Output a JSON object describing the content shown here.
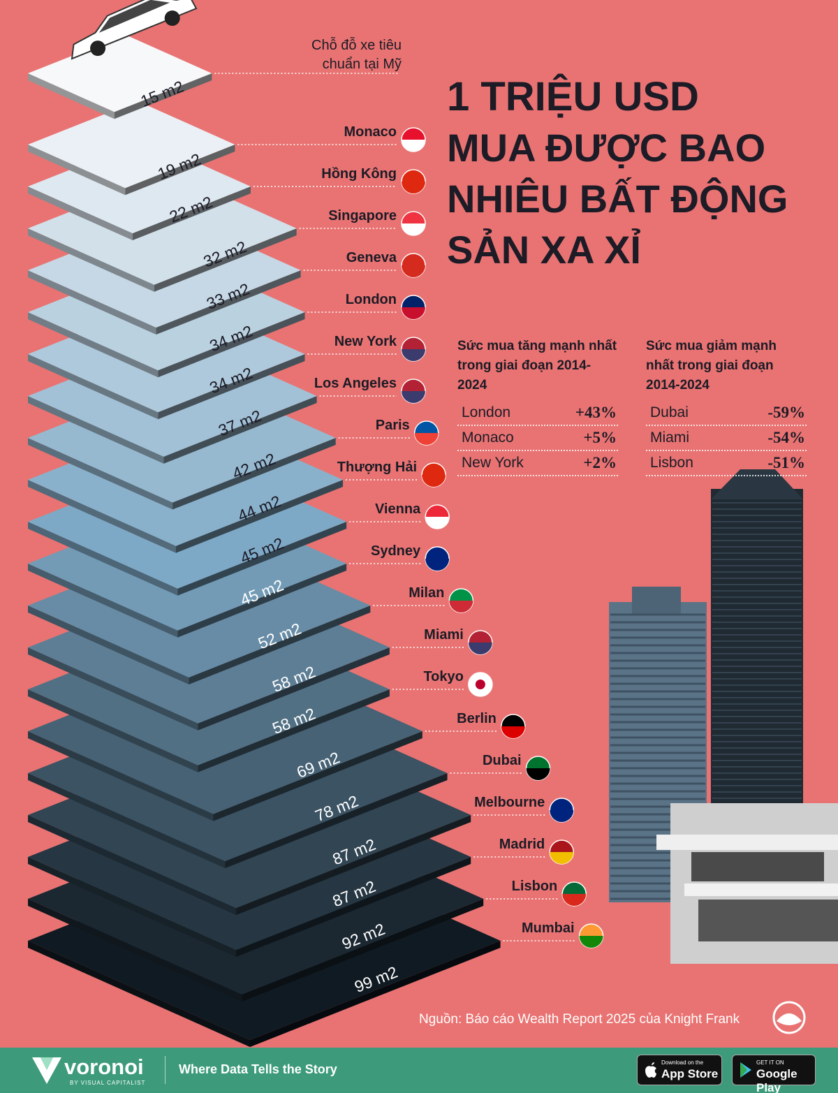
{
  "chart_data": {
    "type": "iso-stack",
    "title": "1 TRIỆU USD",
    "subtitle": "MUA ĐƯỢC BAO NHIÊU BẤT ĐỘNG SẢN XA XỈ",
    "categories": [
      "Chỗ đỗ xe tiêu chuẩn tại Mỹ",
      "Monaco",
      "Hồng Kông",
      "Singapore",
      "Geneva",
      "London",
      "New York",
      "Los Angeles",
      "Paris",
      "Thượng Hải",
      "Vienna",
      "Sydney",
      "Milan",
      "Miami",
      "Tokyo",
      "Berlin",
      "Dubai",
      "Melbourne",
      "Madrid",
      "Lisbon",
      "Mumbai"
    ],
    "values": [
      15,
      19,
      22,
      32,
      33,
      34,
      34,
      37,
      42,
      44,
      45,
      45,
      52,
      58,
      58,
      69,
      78,
      87,
      87,
      92,
      99
    ],
    "value_labels": [
      "15 m2",
      "19 m2",
      "22 m2",
      "32 m2",
      "33 m2",
      "34 m2",
      "34 m2",
      "37 m2",
      "42 m2",
      "44 m2",
      "45 m2",
      "45 m2",
      "52 m2",
      "58 m2",
      "58 m2",
      "69 m2",
      "78 m2",
      "87 m2",
      "87 m2",
      "92 m2",
      "99 m2"
    ],
    "colors": [
      "#f6f8fa",
      "#7ea9c6",
      "#101a22"
    ],
    "source": "Nguồn: Báo cáo Wealth Report 2025 của Knight Frank"
  },
  "tables": [
    {
      "title": "Sức mua tăng mạnh nhất trong giai đoạn 2014-2024",
      "rows": [
        [
          "London",
          "+43%"
        ],
        [
          "Monaco",
          "+5%"
        ],
        [
          "New York",
          "+2%"
        ]
      ]
    },
    {
      "title": "Sức mua giảm mạnh nhất trong giai đoạn 2014-2024",
      "rows": [
        [
          "Dubai",
          "-59%"
        ],
        [
          "Miami",
          "-54%"
        ],
        [
          "Lisbon",
          "-51%"
        ]
      ]
    }
  ],
  "footer": {
    "brand": "voronoi",
    "by": "BY VISUAL CAPITALIST",
    "tagline": "Where Data Tells the Story",
    "app_store": [
      "Download on the",
      "App Store"
    ],
    "google_play": [
      "GET IT ON",
      "Google Play"
    ]
  }
}
